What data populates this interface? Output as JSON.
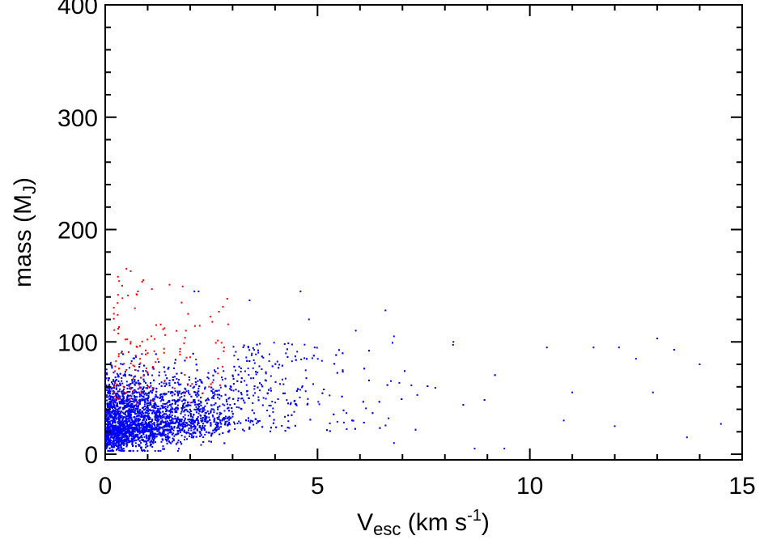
{
  "chart_data": {
    "type": "scatter",
    "title": "",
    "xlabel": {
      "base": "V",
      "sub": "esc",
      "unit_pre": " (km s",
      "sup": "-1",
      "unit_post": ")"
    },
    "ylabel": {
      "base": "mass (M",
      "sub": "J",
      "post": ")"
    },
    "xlim": [
      0,
      15
    ],
    "ylim": [
      -5,
      400
    ],
    "xticks": [
      0,
      5,
      10,
      15
    ],
    "xtick_labels": [
      "0",
      "5",
      "10",
      "15"
    ],
    "yticks": [
      0,
      100,
      200,
      300,
      400
    ],
    "ytick_labels": [
      "0",
      "100",
      "200",
      "300",
      "400"
    ],
    "grid": false,
    "legend": "none",
    "series": [
      {
        "color": "#0000ff",
        "distribution": {
          "count": 4200,
          "x_min": 0.02,
          "x_max": 14.6,
          "y_min": 3,
          "y_max": 145,
          "core_x_range": [
            0,
            3
          ],
          "core_y_range": [
            5,
            60
          ],
          "tail_y_range": [
            20,
            100
          ]
        },
        "points": [
          [
            2.1,
            145
          ],
          [
            2.2,
            145
          ],
          [
            4.6,
            145
          ],
          [
            3.4,
            137
          ],
          [
            6.6,
            128
          ],
          [
            4.8,
            120
          ],
          [
            5.9,
            110
          ],
          [
            6.8,
            105
          ],
          [
            13.0,
            103
          ],
          [
            8.2,
            100
          ],
          [
            10.4,
            95
          ],
          [
            11.5,
            95
          ],
          [
            12.1,
            95
          ],
          [
            13.4,
            93
          ],
          [
            12.5,
            85
          ],
          [
            14.0,
            80
          ],
          [
            14.5,
            27
          ],
          [
            13.7,
            15
          ],
          [
            9.4,
            5
          ],
          [
            8.7,
            5
          ],
          [
            6.8,
            10
          ],
          [
            10.8,
            30
          ],
          [
            12.0,
            25
          ],
          [
            11.0,
            55
          ],
          [
            12.9,
            55
          ]
        ]
      },
      {
        "color": "#ff0000",
        "distribution": {
          "count": 120,
          "x_min": 0.2,
          "x_max": 2.9,
          "y_min": 45,
          "y_max": 165
        },
        "points": [
          [
            0.5,
            165
          ],
          [
            0.6,
            163
          ],
          [
            0.3,
            158
          ],
          [
            0.9,
            155
          ],
          [
            0.4,
            150
          ],
          [
            1.1,
            147
          ],
          [
            1.8,
            135
          ],
          [
            0.7,
            130
          ],
          [
            1.2,
            115
          ],
          [
            1.9,
            110
          ],
          [
            0.6,
            100
          ],
          [
            2.8,
            95
          ],
          [
            1.0,
            90
          ],
          [
            0.5,
            75
          ],
          [
            1.4,
            65
          ],
          [
            0.8,
            55
          ],
          [
            0.3,
            50
          ],
          [
            1.1,
            48
          ]
        ]
      }
    ]
  }
}
